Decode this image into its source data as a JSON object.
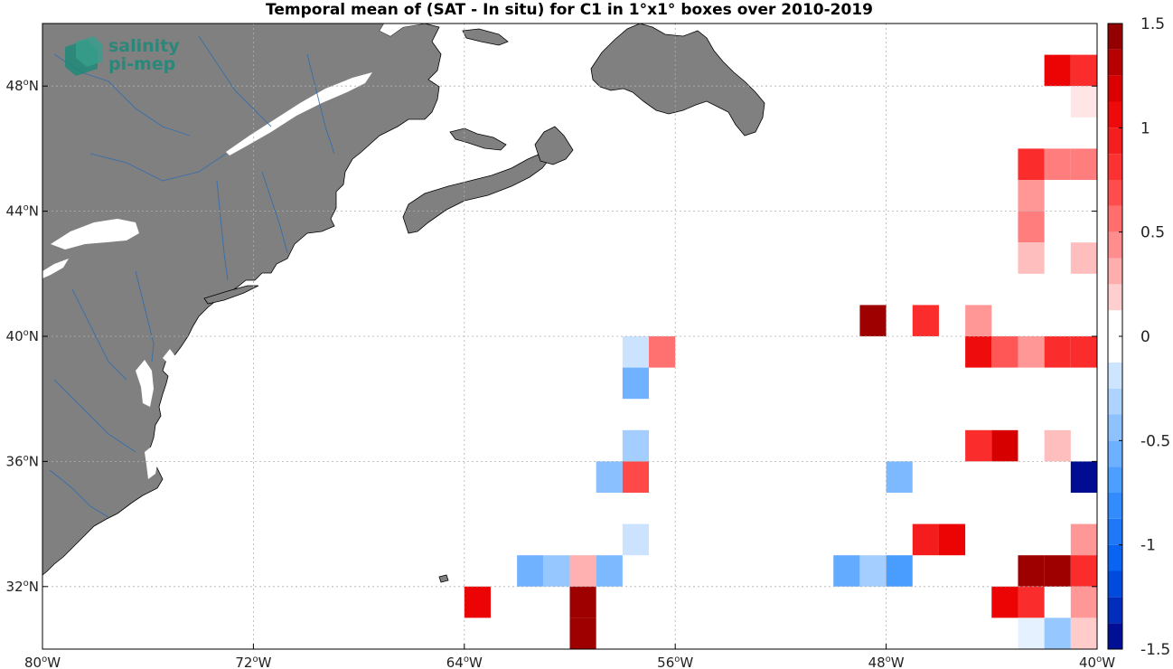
{
  "chart_data": {
    "type": "heatmap",
    "title": "Temporal mean of (SAT - In situ) for C1 in 1°x1° boxes over 2010-2019",
    "xlabel": "",
    "ylabel": "",
    "xlim": [
      -80,
      -40
    ],
    "ylim": [
      30,
      50
    ],
    "grid": true,
    "cell_size_deg": 1,
    "x_ticks": [
      {
        "value": -80,
        "label": "80",
        "hemi": "W"
      },
      {
        "value": -72,
        "label": "72",
        "hemi": "W"
      },
      {
        "value": -64,
        "label": "64",
        "hemi": "W"
      },
      {
        "value": -56,
        "label": "56",
        "hemi": "W"
      },
      {
        "value": -48,
        "label": "48",
        "hemi": "W"
      },
      {
        "value": -40,
        "label": "40",
        "hemi": "W"
      }
    ],
    "y_ticks": [
      {
        "value": 32,
        "label": "32",
        "hemi": "N"
      },
      {
        "value": 36,
        "label": "36",
        "hemi": "N"
      },
      {
        "value": 40,
        "label": "40",
        "hemi": "N"
      },
      {
        "value": 44,
        "label": "44",
        "hemi": "N"
      },
      {
        "value": 48,
        "label": "48",
        "hemi": "N"
      }
    ],
    "colorbar": {
      "min": -1.5,
      "max": 1.5,
      "levels": 24,
      "ticks": [
        {
          "value": 1.5,
          "label": "1.5"
        },
        {
          "value": 1,
          "label": "1"
        },
        {
          "value": 0.5,
          "label": "0.5"
        },
        {
          "value": 0,
          "label": "0"
        },
        {
          "value": -0.5,
          "label": "-0.5"
        },
        {
          "value": -1,
          "label": "-1"
        },
        {
          "value": -1.5,
          "label": "-1.5"
        }
      ]
    },
    "cells": [
      {
        "lon": -41.5,
        "lat": 48.5,
        "value": 1.1
      },
      {
        "lon": -40.5,
        "lat": 48.5,
        "value": 0.85
      },
      {
        "lon": -40.5,
        "lat": 47.5,
        "value": 0.1
      },
      {
        "lon": -42.5,
        "lat": 45.5,
        "value": 0.85
      },
      {
        "lon": -41.5,
        "lat": 45.5,
        "value": 0.5
      },
      {
        "lon": -40.5,
        "lat": 45.5,
        "value": 0.5
      },
      {
        "lon": -42.5,
        "lat": 44.5,
        "value": 0.4
      },
      {
        "lon": -42.5,
        "lat": 43.5,
        "value": 0.5
      },
      {
        "lon": -42.5,
        "lat": 42.5,
        "value": 0.25
      },
      {
        "lon": -40.5,
        "lat": 42.5,
        "value": 0.25
      },
      {
        "lon": -48.5,
        "lat": 40.5,
        "value": 1.4
      },
      {
        "lon": -46.5,
        "lat": 40.5,
        "value": 0.85
      },
      {
        "lon": -44.5,
        "lat": 40.5,
        "value": 0.4
      },
      {
        "lon": -57.5,
        "lat": 39.5,
        "value": -0.2
      },
      {
        "lon": -56.5,
        "lat": 39.5,
        "value": 0.55
      },
      {
        "lon": -44.5,
        "lat": 39.5,
        "value": 1.05
      },
      {
        "lon": -43.5,
        "lat": 39.5,
        "value": 0.65
      },
      {
        "lon": -42.5,
        "lat": 39.5,
        "value": 0.4
      },
      {
        "lon": -41.5,
        "lat": 39.5,
        "value": 0.85
      },
      {
        "lon": -40.5,
        "lat": 39.5,
        "value": 0.85
      },
      {
        "lon": -57.5,
        "lat": 38.5,
        "value": -0.55
      },
      {
        "lon": -57.5,
        "lat": 36.5,
        "value": -0.35
      },
      {
        "lon": -44.5,
        "lat": 36.5,
        "value": 0.85
      },
      {
        "lon": -43.5,
        "lat": 36.5,
        "value": 1.2
      },
      {
        "lon": -41.5,
        "lat": 36.5,
        "value": 0.25
      },
      {
        "lon": -58.5,
        "lat": 35.5,
        "value": -0.45
      },
      {
        "lon": -57.5,
        "lat": 35.5,
        "value": 0.7
      },
      {
        "lon": -47.5,
        "lat": 35.5,
        "value": -0.5
      },
      {
        "lon": -40.5,
        "lat": 35.5,
        "value": -1.45
      },
      {
        "lon": -57.5,
        "lat": 33.5,
        "value": -0.2
      },
      {
        "lon": -46.5,
        "lat": 33.5,
        "value": 0.95
      },
      {
        "lon": -45.5,
        "lat": 33.5,
        "value": 1.1
      },
      {
        "lon": -40.5,
        "lat": 33.5,
        "value": 0.4
      },
      {
        "lon": -61.5,
        "lat": 32.5,
        "value": -0.55
      },
      {
        "lon": -60.5,
        "lat": 32.5,
        "value": -0.4
      },
      {
        "lon": -59.5,
        "lat": 32.5,
        "value": 0.3
      },
      {
        "lon": -58.5,
        "lat": 32.5,
        "value": -0.5
      },
      {
        "lon": -49.5,
        "lat": 32.5,
        "value": -0.6
      },
      {
        "lon": -48.5,
        "lat": 32.5,
        "value": -0.35
      },
      {
        "lon": -47.5,
        "lat": 32.5,
        "value": -0.7
      },
      {
        "lon": -42.5,
        "lat": 32.5,
        "value": 1.4
      },
      {
        "lon": -41.5,
        "lat": 32.5,
        "value": 1.4
      },
      {
        "lon": -40.5,
        "lat": 32.5,
        "value": 0.85
      },
      {
        "lon": -63.5,
        "lat": 31.5,
        "value": 1.1
      },
      {
        "lon": -59.5,
        "lat": 31.5,
        "value": 1.4
      },
      {
        "lon": -43.5,
        "lat": 31.5,
        "value": 1.1
      },
      {
        "lon": -42.5,
        "lat": 31.5,
        "value": 0.85
      },
      {
        "lon": -40.5,
        "lat": 31.5,
        "value": 0.4
      },
      {
        "lon": -59.5,
        "lat": 30.5,
        "value": 1.4
      },
      {
        "lon": -42.5,
        "lat": 30.5,
        "value": -0.1
      },
      {
        "lon": -41.5,
        "lat": 30.5,
        "value": -0.4
      },
      {
        "lon": -40.5,
        "lat": 30.5,
        "value": 0.2
      }
    ]
  },
  "logo": {
    "line1": "salinity",
    "line2": "pi-mep",
    "color": "#1a8a78"
  },
  "colors": {
    "land": "#808080",
    "coast": "#000000",
    "rivers": "#2f6db0",
    "grid": "#b0b0b0"
  }
}
